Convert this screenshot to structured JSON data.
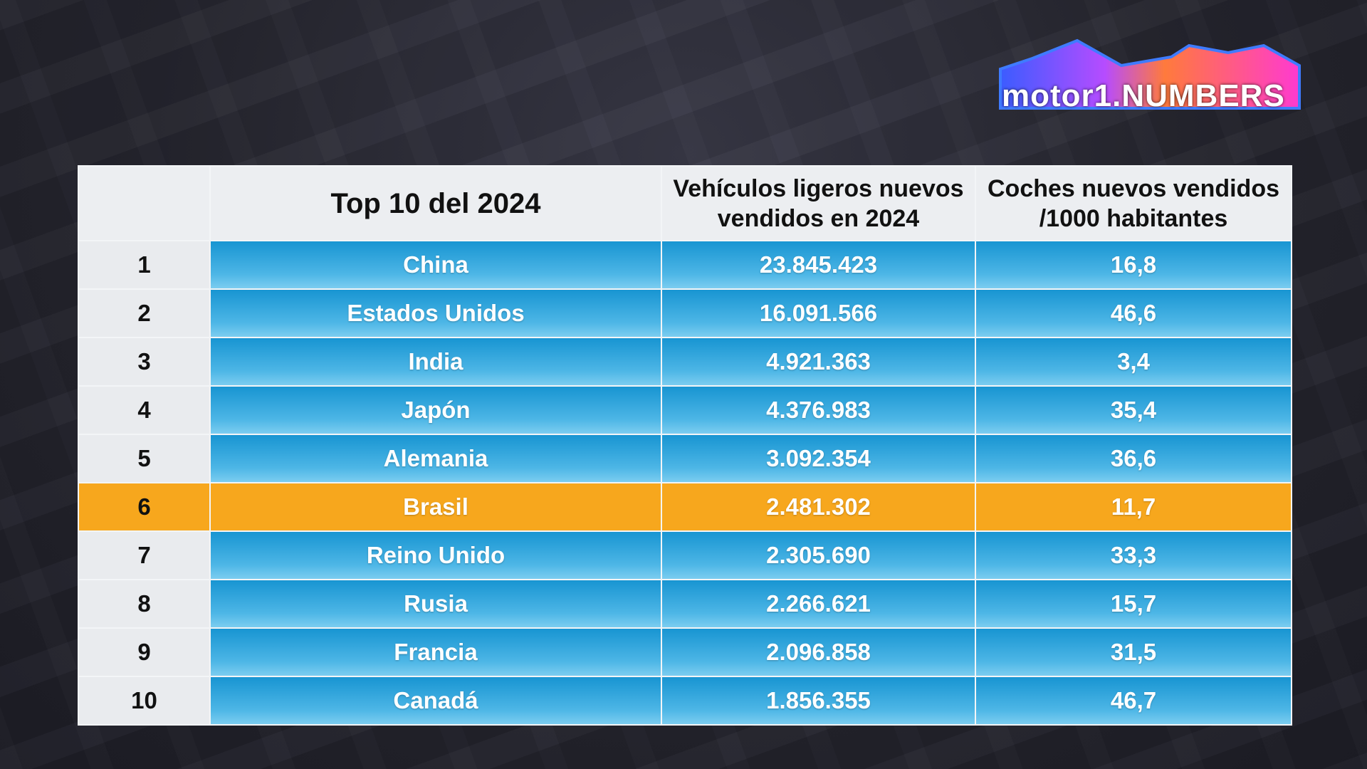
{
  "logo": {
    "text": "motor1.NUMBERS",
    "colors": [
      "#3b5cff",
      "#b64cff",
      "#ff7a3c",
      "#ff3ad0"
    ]
  },
  "table": {
    "headers": [
      "",
      "Top 10 del 2024",
      "Vehículos ligeros nuevos vendidos en 2024",
      "Coches nuevos vendidos /1000 habitantes"
    ],
    "rows": [
      {
        "rank": "1",
        "country": "China",
        "sales": "23.845.423",
        "per1000": "16,8"
      },
      {
        "rank": "2",
        "country": "Estados Unidos",
        "sales": "16.091.566",
        "per1000": "46,6"
      },
      {
        "rank": "3",
        "country": "India",
        "sales": "4.921.363",
        "per1000": "3,4"
      },
      {
        "rank": "4",
        "country": "Japón",
        "sales": "4.376.983",
        "per1000": "35,4"
      },
      {
        "rank": "5",
        "country": "Alemania",
        "sales": "3.092.354",
        "per1000": "36,6"
      },
      {
        "rank": "6",
        "country": "Brasil",
        "sales": "2.481.302",
        "per1000": "11,7",
        "highlight": true
      },
      {
        "rank": "7",
        "country": "Reino Unido",
        "sales": "2.305.690",
        "per1000": "33,3"
      },
      {
        "rank": "8",
        "country": "Rusia",
        "sales": "2.266.621",
        "per1000": "15,7"
      },
      {
        "rank": "9",
        "country": "Francia",
        "sales": "2.096.858",
        "per1000": "31,5"
      },
      {
        "rank": "10",
        "country": "Canadá",
        "sales": "1.856.355",
        "per1000": "46,7"
      }
    ],
    "colors": {
      "row": "#1895d2",
      "highlight": "#f7a71d",
      "header": "#eceef1"
    }
  }
}
